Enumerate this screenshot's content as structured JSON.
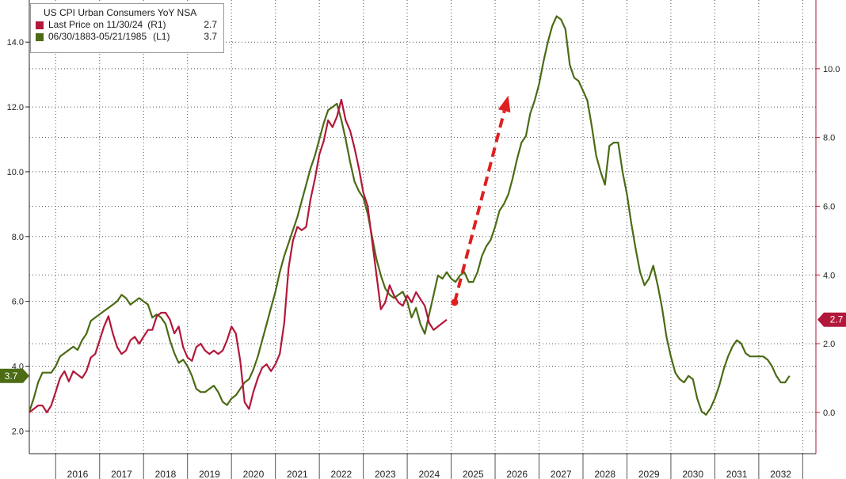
{
  "chart_data": {
    "type": "line",
    "title": "US CPI Urban Consumers YoY NSA",
    "x_axis": {
      "type": "time",
      "range": [
        2015.4,
        2033.3
      ],
      "tick_labels": [
        "2016",
        "2017",
        "2018",
        "2019",
        "2020",
        "2021",
        "2022",
        "2023",
        "2024",
        "2025",
        "2026",
        "2027",
        "2028",
        "2029",
        "2030",
        "2031",
        "2032"
      ]
    },
    "left_axis": {
      "range": [
        1.3,
        15.3
      ],
      "ticks": [
        2.0,
        4.0,
        6.0,
        8.0,
        10.0,
        12.0,
        14.0
      ],
      "tick_labels": [
        "2.0",
        "4.0",
        "6.0",
        "8.0",
        "10.0",
        "12.0",
        "14.0"
      ]
    },
    "right_axis": {
      "range": [
        -1.2,
        12.0
      ],
      "ticks": [
        0.0,
        2.0,
        4.0,
        6.0,
        8.0,
        10.0
      ],
      "tick_labels": [
        "0.0",
        "2.0",
        "4.0",
        "6.0",
        "8.0",
        "10.0"
      ]
    },
    "grid": "dotted",
    "legend_position": "top-left",
    "series": [
      {
        "name": "Last Price on 11/30/24",
        "axis": "R1",
        "axis_label": "(R1)",
        "last_value": "2.7",
        "color": "#b2183a",
        "points": [
          [
            2015.4,
            0.0
          ],
          [
            2015.5,
            0.1
          ],
          [
            2015.6,
            0.2
          ],
          [
            2015.7,
            0.2
          ],
          [
            2015.8,
            0.0
          ],
          [
            2015.9,
            0.2
          ],
          [
            2016.0,
            0.6
          ],
          [
            2016.1,
            1.0
          ],
          [
            2016.2,
            1.2
          ],
          [
            2016.3,
            0.9
          ],
          [
            2016.4,
            1.2
          ],
          [
            2016.5,
            1.1
          ],
          [
            2016.6,
            1.0
          ],
          [
            2016.7,
            1.2
          ],
          [
            2016.8,
            1.6
          ],
          [
            2016.9,
            1.7
          ],
          [
            2017.0,
            2.1
          ],
          [
            2017.1,
            2.5
          ],
          [
            2017.2,
            2.8
          ],
          [
            2017.3,
            2.3
          ],
          [
            2017.4,
            1.9
          ],
          [
            2017.5,
            1.7
          ],
          [
            2017.6,
            1.8
          ],
          [
            2017.7,
            2.1
          ],
          [
            2017.8,
            2.2
          ],
          [
            2017.9,
            2.0
          ],
          [
            2018.0,
            2.2
          ],
          [
            2018.1,
            2.4
          ],
          [
            2018.2,
            2.4
          ],
          [
            2018.3,
            2.8
          ],
          [
            2018.4,
            2.9
          ],
          [
            2018.5,
            2.9
          ],
          [
            2018.6,
            2.7
          ],
          [
            2018.7,
            2.3
          ],
          [
            2018.8,
            2.5
          ],
          [
            2018.9,
            1.9
          ],
          [
            2019.0,
            1.6
          ],
          [
            2019.1,
            1.5
          ],
          [
            2019.2,
            1.9
          ],
          [
            2019.3,
            2.0
          ],
          [
            2019.4,
            1.8
          ],
          [
            2019.5,
            1.7
          ],
          [
            2019.6,
            1.8
          ],
          [
            2019.7,
            1.7
          ],
          [
            2019.8,
            1.8
          ],
          [
            2019.9,
            2.1
          ],
          [
            2020.0,
            2.5
          ],
          [
            2020.1,
            2.3
          ],
          [
            2020.2,
            1.5
          ],
          [
            2020.3,
            0.3
          ],
          [
            2020.4,
            0.1
          ],
          [
            2020.5,
            0.6
          ],
          [
            2020.6,
            1.0
          ],
          [
            2020.7,
            1.3
          ],
          [
            2020.8,
            1.4
          ],
          [
            2020.9,
            1.2
          ],
          [
            2021.0,
            1.4
          ],
          [
            2021.1,
            1.7
          ],
          [
            2021.2,
            2.6
          ],
          [
            2021.3,
            4.2
          ],
          [
            2021.4,
            5.0
          ],
          [
            2021.5,
            5.4
          ],
          [
            2021.6,
            5.3
          ],
          [
            2021.7,
            5.4
          ],
          [
            2021.8,
            6.2
          ],
          [
            2021.9,
            6.8
          ],
          [
            2022.0,
            7.5
          ],
          [
            2022.1,
            7.9
          ],
          [
            2022.2,
            8.5
          ],
          [
            2022.3,
            8.3
          ],
          [
            2022.4,
            8.6
          ],
          [
            2022.5,
            9.1
          ],
          [
            2022.6,
            8.5
          ],
          [
            2022.7,
            8.2
          ],
          [
            2022.8,
            7.7
          ],
          [
            2022.9,
            7.1
          ],
          [
            2023.0,
            6.4
          ],
          [
            2023.1,
            6.0
          ],
          [
            2023.2,
            5.0
          ],
          [
            2023.3,
            4.0
          ],
          [
            2023.4,
            3.0
          ],
          [
            2023.5,
            3.2
          ],
          [
            2023.6,
            3.7
          ],
          [
            2023.7,
            3.4
          ],
          [
            2023.8,
            3.2
          ],
          [
            2023.9,
            3.1
          ],
          [
            2024.0,
            3.4
          ],
          [
            2024.1,
            3.2
          ],
          [
            2024.2,
            3.5
          ],
          [
            2024.3,
            3.3
          ],
          [
            2024.4,
            3.1
          ],
          [
            2024.5,
            2.6
          ],
          [
            2024.6,
            2.4
          ],
          [
            2024.7,
            2.5
          ],
          [
            2024.8,
            2.6
          ],
          [
            2024.9,
            2.7
          ]
        ]
      },
      {
        "name": "06/30/1883-05/21/1985",
        "axis": "L1",
        "axis_label": "(L1)",
        "last_value": "3.7",
        "color": "#4b6b14",
        "points": [
          [
            2015.4,
            2.6
          ],
          [
            2015.5,
            3.0
          ],
          [
            2015.6,
            3.5
          ],
          [
            2015.7,
            3.8
          ],
          [
            2015.8,
            3.8
          ],
          [
            2015.9,
            3.8
          ],
          [
            2016.0,
            4.0
          ],
          [
            2016.1,
            4.3
          ],
          [
            2016.2,
            4.4
          ],
          [
            2016.3,
            4.5
          ],
          [
            2016.4,
            4.6
          ],
          [
            2016.5,
            4.5
          ],
          [
            2016.6,
            4.8
          ],
          [
            2016.7,
            5.0
          ],
          [
            2016.8,
            5.4
          ],
          [
            2016.9,
            5.5
          ],
          [
            2017.0,
            5.6
          ],
          [
            2017.1,
            5.7
          ],
          [
            2017.2,
            5.8
          ],
          [
            2017.3,
            5.9
          ],
          [
            2017.4,
            6.0
          ],
          [
            2017.5,
            6.2
          ],
          [
            2017.6,
            6.1
          ],
          [
            2017.7,
            5.9
          ],
          [
            2017.8,
            6.0
          ],
          [
            2017.9,
            6.1
          ],
          [
            2018.0,
            6.0
          ],
          [
            2018.1,
            5.9
          ],
          [
            2018.2,
            5.5
          ],
          [
            2018.3,
            5.6
          ],
          [
            2018.4,
            5.5
          ],
          [
            2018.5,
            5.3
          ],
          [
            2018.6,
            4.8
          ],
          [
            2018.7,
            4.4
          ],
          [
            2018.8,
            4.1
          ],
          [
            2018.9,
            4.2
          ],
          [
            2019.0,
            4.0
          ],
          [
            2019.1,
            3.7
          ],
          [
            2019.2,
            3.3
          ],
          [
            2019.3,
            3.2
          ],
          [
            2019.4,
            3.2
          ],
          [
            2019.5,
            3.3
          ],
          [
            2019.6,
            3.4
          ],
          [
            2019.7,
            3.2
          ],
          [
            2019.8,
            2.9
          ],
          [
            2019.9,
            2.8
          ],
          [
            2020.0,
            3.0
          ],
          [
            2020.1,
            3.1
          ],
          [
            2020.2,
            3.3
          ],
          [
            2020.3,
            3.5
          ],
          [
            2020.4,
            3.6
          ],
          [
            2020.5,
            3.9
          ],
          [
            2020.6,
            4.3
          ],
          [
            2020.7,
            4.8
          ],
          [
            2020.8,
            5.3
          ],
          [
            2020.9,
            5.8
          ],
          [
            2021.0,
            6.3
          ],
          [
            2021.1,
            6.9
          ],
          [
            2021.2,
            7.4
          ],
          [
            2021.3,
            7.8
          ],
          [
            2021.4,
            8.2
          ],
          [
            2021.5,
            8.6
          ],
          [
            2021.6,
            9.1
          ],
          [
            2021.7,
            9.6
          ],
          [
            2021.8,
            10.1
          ],
          [
            2021.9,
            10.5
          ],
          [
            2022.0,
            11.0
          ],
          [
            2022.1,
            11.5
          ],
          [
            2022.2,
            11.9
          ],
          [
            2022.3,
            12.0
          ],
          [
            2022.4,
            12.1
          ],
          [
            2022.5,
            11.6
          ],
          [
            2022.6,
            11.0
          ],
          [
            2022.7,
            10.3
          ],
          [
            2022.8,
            9.7
          ],
          [
            2022.9,
            9.4
          ],
          [
            2023.0,
            9.2
          ],
          [
            2023.1,
            8.7
          ],
          [
            2023.2,
            8.0
          ],
          [
            2023.3,
            7.3
          ],
          [
            2023.4,
            6.8
          ],
          [
            2023.5,
            6.4
          ],
          [
            2023.6,
            6.2
          ],
          [
            2023.7,
            6.1
          ],
          [
            2023.8,
            6.2
          ],
          [
            2023.9,
            6.3
          ],
          [
            2024.0,
            6.0
          ],
          [
            2024.1,
            5.5
          ],
          [
            2024.2,
            5.8
          ],
          [
            2024.3,
            5.3
          ],
          [
            2024.4,
            5.0
          ],
          [
            2024.5,
            5.6
          ],
          [
            2024.6,
            6.2
          ],
          [
            2024.7,
            6.8
          ],
          [
            2024.8,
            6.7
          ],
          [
            2024.9,
            6.9
          ],
          [
            2025.0,
            6.7
          ],
          [
            2025.1,
            6.6
          ],
          [
            2025.2,
            6.8
          ],
          [
            2025.3,
            6.9
          ],
          [
            2025.4,
            6.6
          ],
          [
            2025.5,
            6.6
          ],
          [
            2025.6,
            6.9
          ],
          [
            2025.7,
            7.4
          ],
          [
            2025.8,
            7.7
          ],
          [
            2025.9,
            7.9
          ],
          [
            2026.0,
            8.3
          ],
          [
            2026.1,
            8.8
          ],
          [
            2026.2,
            9.0
          ],
          [
            2026.3,
            9.3
          ],
          [
            2026.4,
            9.8
          ],
          [
            2026.5,
            10.4
          ],
          [
            2026.6,
            10.9
          ],
          [
            2026.7,
            11.1
          ],
          [
            2026.8,
            11.8
          ],
          [
            2026.9,
            12.2
          ],
          [
            2027.0,
            12.7
          ],
          [
            2027.1,
            13.4
          ],
          [
            2027.2,
            14.0
          ],
          [
            2027.3,
            14.5
          ],
          [
            2027.4,
            14.8
          ],
          [
            2027.5,
            14.7
          ],
          [
            2027.6,
            14.4
          ],
          [
            2027.7,
            13.3
          ],
          [
            2027.8,
            12.9
          ],
          [
            2027.9,
            12.8
          ],
          [
            2028.0,
            12.5
          ],
          [
            2028.1,
            12.2
          ],
          [
            2028.2,
            11.4
          ],
          [
            2028.3,
            10.5
          ],
          [
            2028.4,
            10.0
          ],
          [
            2028.5,
            9.6
          ],
          [
            2028.6,
            10.8
          ],
          [
            2028.7,
            10.9
          ],
          [
            2028.8,
            10.9
          ],
          [
            2028.9,
            10.0
          ],
          [
            2029.0,
            9.3
          ],
          [
            2029.1,
            8.4
          ],
          [
            2029.2,
            7.6
          ],
          [
            2029.3,
            6.9
          ],
          [
            2029.4,
            6.5
          ],
          [
            2029.5,
            6.7
          ],
          [
            2029.6,
            7.1
          ],
          [
            2029.7,
            6.5
          ],
          [
            2029.8,
            5.8
          ],
          [
            2029.9,
            4.9
          ],
          [
            2030.0,
            4.3
          ],
          [
            2030.1,
            3.8
          ],
          [
            2030.2,
            3.6
          ],
          [
            2030.3,
            3.5
          ],
          [
            2030.4,
            3.7
          ],
          [
            2030.5,
            3.6
          ],
          [
            2030.6,
            3.0
          ],
          [
            2030.7,
            2.6
          ],
          [
            2030.8,
            2.5
          ],
          [
            2030.9,
            2.7
          ],
          [
            2031.0,
            3.0
          ],
          [
            2031.1,
            3.4
          ],
          [
            2031.2,
            3.9
          ],
          [
            2031.3,
            4.3
          ],
          [
            2031.4,
            4.6
          ],
          [
            2031.5,
            4.8
          ],
          [
            2031.6,
            4.7
          ],
          [
            2031.7,
            4.4
          ],
          [
            2031.8,
            4.3
          ],
          [
            2031.9,
            4.3
          ],
          [
            2032.0,
            4.3
          ],
          [
            2032.1,
            4.3
          ],
          [
            2032.2,
            4.2
          ],
          [
            2032.3,
            4.0
          ],
          [
            2032.4,
            3.7
          ],
          [
            2032.5,
            3.5
          ],
          [
            2032.6,
            3.5
          ],
          [
            2032.7,
            3.7
          ]
        ]
      }
    ],
    "annotations": [
      {
        "type": "arrow",
        "style": "dashed",
        "color": "#e02020",
        "from": [
          2025.08,
          5.97
        ],
        "to": [
          2026.3,
          12.35
        ]
      }
    ],
    "price_tags": [
      {
        "axis": "R1",
        "value": "2.7",
        "color": "#b2183a"
      },
      {
        "axis": "L1",
        "value": "3.7",
        "color": "#4b6b14"
      }
    ]
  }
}
